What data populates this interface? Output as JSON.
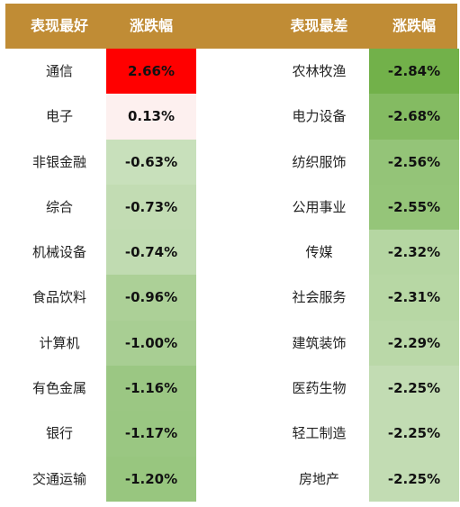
{
  "header": {
    "best_label": "表现最好",
    "change_label_left": "涨跌幅",
    "worst_label": "表现最差",
    "change_label_right": "涨跌幅"
  },
  "colors": {
    "header_bg": "#c08c35",
    "positive_high": "#ff0000",
    "positive_low": "#fdf0ef"
  },
  "best": [
    {
      "name": "通信",
      "change": "2.66%",
      "color": "#ff0000"
    },
    {
      "name": "电子",
      "change": "0.13%",
      "color": "#fdf0ef"
    },
    {
      "name": "非银金融",
      "change": "-0.63%",
      "color": "#c8e0bb"
    },
    {
      "name": "综合",
      "change": "-0.73%",
      "color": "#c2dcb3"
    },
    {
      "name": "机械设备",
      "change": "-0.74%",
      "color": "#c0dbb1"
    },
    {
      "name": "食品饮料",
      "change": "-0.96%",
      "color": "#acd097"
    },
    {
      "name": "计算机",
      "change": "-1.00%",
      "color": "#a8ce93"
    },
    {
      "name": "有色金属",
      "change": "-1.16%",
      "color": "#9bc783"
    },
    {
      "name": "银行",
      "change": "-1.17%",
      "color": "#9ac782"
    },
    {
      "name": "交通运输",
      "change": "-1.20%",
      "color": "#98c67f"
    }
  ],
  "worst": [
    {
      "name": "农林牧渔",
      "change": "-2.84%",
      "color": "#72b14a"
    },
    {
      "name": "电力设备",
      "change": "-2.68%",
      "color": "#84bb62"
    },
    {
      "name": "纺织服饰",
      "change": "-2.56%",
      "color": "#94c478"
    },
    {
      "name": "公用事业",
      "change": "-2.55%",
      "color": "#95c579"
    },
    {
      "name": "传媒",
      "change": "-2.32%",
      "color": "#b5d6a2"
    },
    {
      "name": "社会服务",
      "change": "-2.31%",
      "color": "#b7d7a4"
    },
    {
      "name": "建筑装饰",
      "change": "-2.29%",
      "color": "#bad8a8"
    },
    {
      "name": "医药生物",
      "change": "-2.25%",
      "color": "#c2dcb3"
    },
    {
      "name": "轻工制造",
      "change": "-2.25%",
      "color": "#c2dcb3"
    },
    {
      "name": "房地产",
      "change": "-2.25%",
      "color": "#c2dcb3"
    }
  ]
}
